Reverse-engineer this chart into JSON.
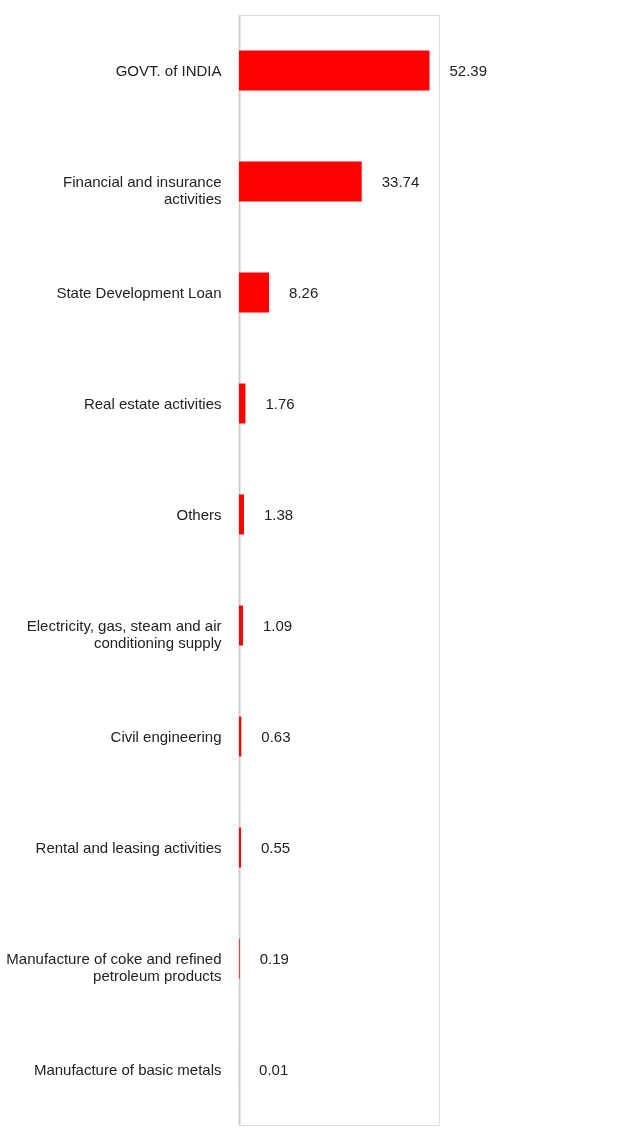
{
  "chart_data": {
    "type": "bar",
    "orientation": "horizontal",
    "categories": [
      "GOVT. of INDIA",
      "Financial and insurance activities",
      "State Development Loan",
      "Real estate activities",
      "Others",
      "Electricity, gas, steam and air conditioning supply",
      "Civil engineering",
      "Rental and leasing activities",
      "Manufacture of coke and refined petroleum products",
      "Manufacture of basic metals"
    ],
    "values": [
      52.39,
      33.74,
      8.26,
      1.76,
      1.38,
      1.09,
      0.63,
      0.55,
      0.19,
      0.01
    ],
    "color": "#ff0000",
    "data_labels": true
  }
}
